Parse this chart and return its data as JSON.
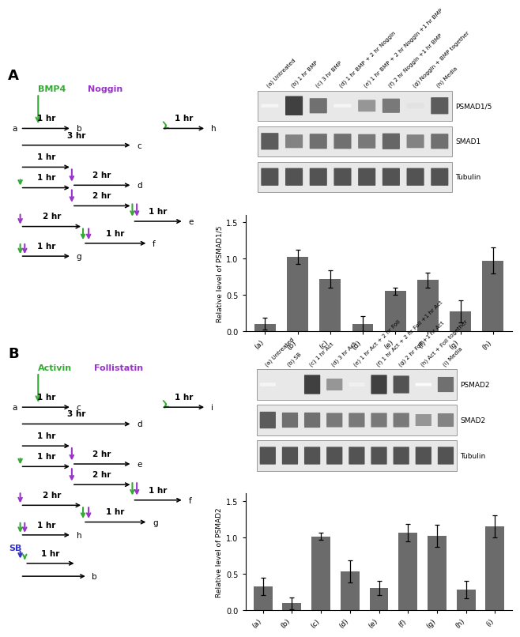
{
  "panel_A": {
    "bar_values": [
      0.1,
      1.02,
      0.72,
      0.1,
      0.55,
      0.7,
      0.27,
      0.97
    ],
    "bar_errors": [
      0.08,
      0.1,
      0.12,
      0.1,
      0.05,
      0.1,
      0.15,
      0.18
    ],
    "bar_color": "#6b6b6b",
    "ylabel": "Relative level of PSMAD1/5",
    "ylim": [
      0,
      1.6
    ],
    "yticks": [
      0.0,
      0.5,
      1.0,
      1.5
    ],
    "xtick_labels": [
      "(a)",
      "(b)",
      "(c)",
      "(d)",
      "(e)",
      "(f)",
      "(g)",
      "(h)"
    ],
    "col_labels": [
      "(a) Untreated",
      "(b) 1 hr BMP",
      "(c) 3 hr BMP",
      "(d) 1 hr BMP + 2 hr Noggin",
      "(e) 1 hr BMP + 2 hr Noggin +1 hr BMP",
      "(f) 2 hr Noggin +1 hr BMP",
      "(g) Noggin + BMP together",
      "(h) Media"
    ],
    "wb_labels": [
      "PSMAD1/5",
      "SMAD1",
      "Tubulin"
    ],
    "psmad_bands": [
      0.05,
      1.0,
      0.75,
      0.05,
      0.55,
      0.7,
      0.15,
      0.85
    ],
    "smad_bands": [
      0.85,
      0.65,
      0.75,
      0.75,
      0.7,
      0.8,
      0.65,
      0.75
    ],
    "tubulin_bands": [
      0.9,
      0.9,
      0.9,
      0.9,
      0.9,
      0.9,
      0.9,
      0.9
    ],
    "label1": "BMP4",
    "label2": "Noggin",
    "color1": "#33aa33",
    "color2": "#9933cc",
    "panel_letter": "A",
    "recycle_label": "h",
    "n_lanes": 8
  },
  "panel_B": {
    "bar_values": [
      0.32,
      0.09,
      1.01,
      0.53,
      0.3,
      1.06,
      1.02,
      0.28,
      1.15
    ],
    "bar_errors": [
      0.12,
      0.08,
      0.05,
      0.15,
      0.1,
      0.12,
      0.15,
      0.12,
      0.15
    ],
    "bar_color": "#6b6b6b",
    "ylabel": "Relative level of PSMAD2",
    "ylim": [
      0,
      1.6
    ],
    "yticks": [
      0.0,
      0.5,
      1.0,
      1.5
    ],
    "xtick_labels": [
      "(a)",
      "(b)",
      "(c)",
      "(d)",
      "(e)",
      "(f)",
      "(g)",
      "(h)",
      "(i)"
    ],
    "col_labels": [
      "(a) Untreated",
      "(b) SB",
      "(c) 1 hr Act",
      "(d) 3 hr Act",
      "(e) 1 hr Act + 2 hr Foll",
      "(f) 1 hr Act + 2 hr Foll +1 hr Act",
      "(g) 2 hr Foll +1 hr Act",
      "(h) Act + Foll together",
      "(i) Media"
    ],
    "wb_labels": [
      "PSMAD2",
      "SMAD2",
      "Tubulin"
    ],
    "psmad_bands": [
      0.05,
      0.0,
      1.0,
      0.55,
      0.08,
      1.0,
      0.9,
      0.02,
      0.75
    ],
    "smad_bands": [
      0.85,
      0.75,
      0.75,
      0.7,
      0.7,
      0.7,
      0.7,
      0.55,
      0.65
    ],
    "tubulin_bands": [
      0.9,
      0.9,
      0.9,
      0.9,
      0.9,
      0.9,
      0.9,
      0.9,
      0.9
    ],
    "label1": "Activin",
    "label2": "Follistatin",
    "color1": "#33aa33",
    "color2": "#9933cc",
    "sb_color": "#3333cc",
    "panel_letter": "B",
    "recycle_label": "i",
    "n_lanes": 9
  },
  "bg": "#ffffff",
  "fig_w": 6.5,
  "fig_h": 7.04
}
